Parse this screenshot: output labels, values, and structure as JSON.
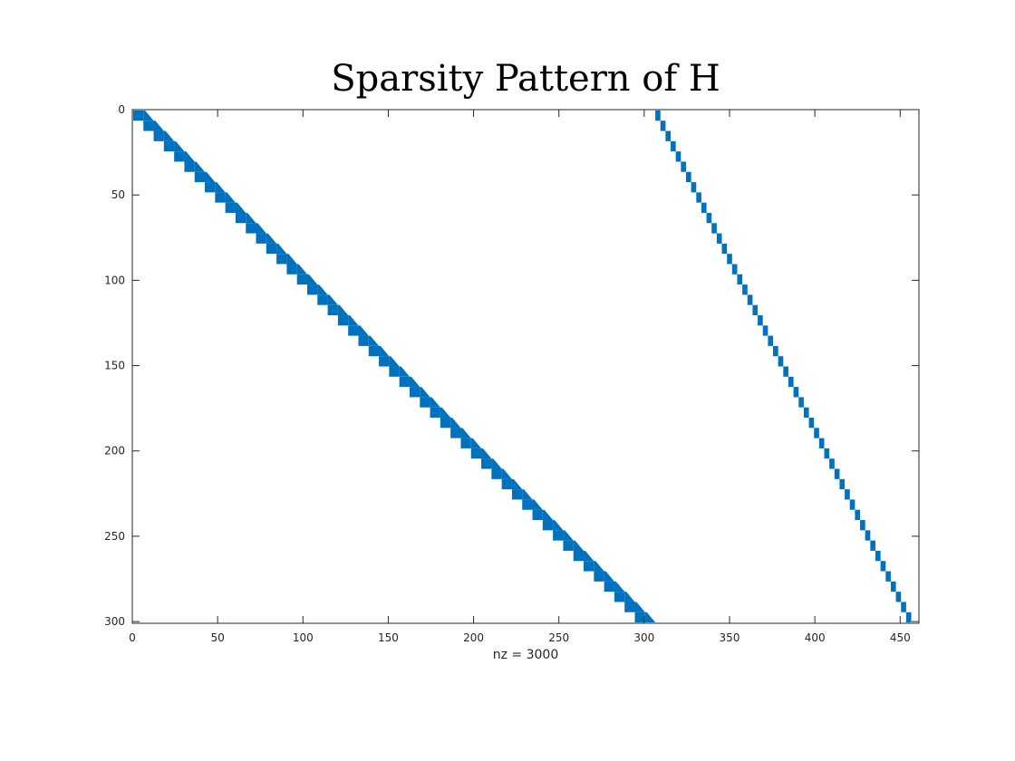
{
  "chart_data": {
    "type": "scatter",
    "title": "Sparsity Pattern of H",
    "xlabel": "nz = 3000",
    "ylabel": "",
    "xlim": [
      0,
      461
    ],
    "ylim": [
      0,
      301
    ],
    "y_axis_reversed": true,
    "grid": false,
    "marker_color": "#0072BD",
    "xticks": [
      "0",
      "50",
      "100",
      "150",
      "200",
      "250",
      "300",
      "350",
      "400",
      "450"
    ],
    "yticks": [
      "0",
      "50",
      "100",
      "150",
      "200",
      "250",
      "300"
    ],
    "blocks": {
      "count": 50,
      "rows_per_block": 6,
      "left_band": {
        "description_of_nonzeros": "row i has nonzero columns from floor(i/6)*6+1 to i+6",
        "cols_per_block": 6,
        "col_offset": 0
      },
      "right_band": {
        "description_of_nonzeros": "row i has nonzeros in columns 306+3*floor(i/6)+1 to 306+3*floor(i/6)+3",
        "cols_per_block": 3,
        "col_offset": 306
      }
    },
    "nz": 3000
  }
}
